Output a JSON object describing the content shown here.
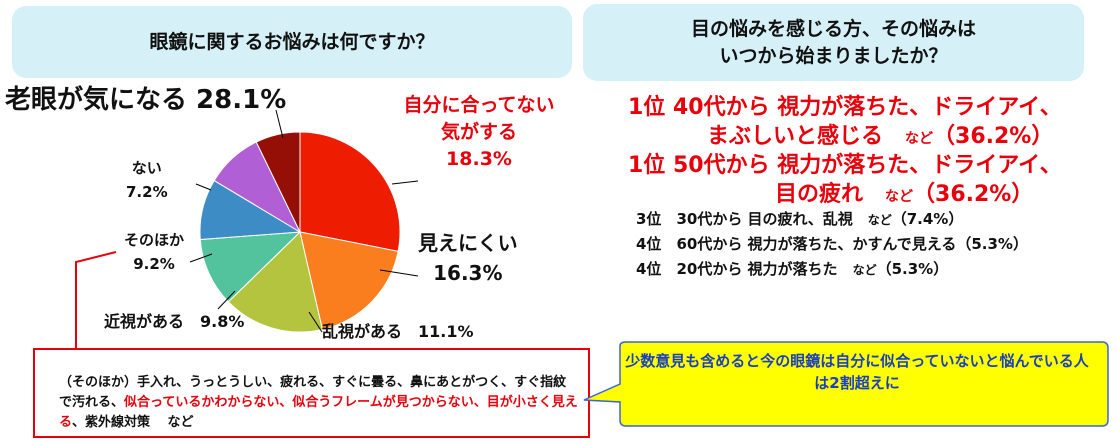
{
  "left_header": "眼鏡に関するお悩みは何ですか？",
  "right_header": "目の悩みを感じる方、その悩みは\nいつから始まりましたか？",
  "chart_data": {
    "type": "pie",
    "title": "眼鏡に関するお悩みは何ですか？",
    "slices": [
      {
        "label": "老眼が気になる",
        "value": 28.1,
        "pct_label": "28.1%",
        "color": "#ee1c00"
      },
      {
        "label": "自分に合ってない気がする",
        "value": 18.3,
        "pct_label": "18.3%",
        "color": "#fa7d1e"
      },
      {
        "label": "見えにくい",
        "value": 16.3,
        "pct_label": "16.3%",
        "color": "#b5c43f"
      },
      {
        "label": "乱視がある",
        "value": 11.1,
        "pct_label": "11.1%",
        "color": "#52c39d"
      },
      {
        "label": "近視がある",
        "value": 9.8,
        "pct_label": "9.8%",
        "color": "#3e8cc6"
      },
      {
        "label": "そのほか",
        "value": 9.2,
        "pct_label": "9.2%",
        "color": "#b05fd4"
      },
      {
        "label": "ない",
        "value": 7.2,
        "pct_label": "7.2%",
        "color": "#950f06"
      }
    ]
  },
  "pie_labels": {
    "rougan": "老眼が気になる 28.1%",
    "jibun": "自分に合ってない\n気がする\n18.3%",
    "mienikui": "見えにくい\n16.3%",
    "ranshi": "乱視がある　11.1%",
    "kinshi": "近視がある　9.8%",
    "sonohoka": "そのほか\n9.2%",
    "nai": "ない\n7.2%"
  },
  "ranking": [
    {
      "rank": "1位",
      "line1": "40代から 視力が落ちた、ドライアイ、",
      "line2": "まぶしいと感じる",
      "nado": "など",
      "pct": "（36.2%）"
    },
    {
      "rank": "1位",
      "line1": "50代から 視力が落ちた、ドライアイ、",
      "line2": "目の疲れ",
      "nado": "など",
      "pct": "（36.2%）"
    },
    {
      "rank": "3位",
      "text": "30代から 目の疲れ、乱視",
      "nado": "など",
      "pct": "（7.4%）"
    },
    {
      "rank": "4位",
      "text": "60代から 視力が落ちた、かすんで見える",
      "nado": "",
      "pct": "（5.3%）"
    },
    {
      "rank": "4位",
      "text": "20代から 視力が落ちた",
      "nado": "など",
      "pct": "（5.3%）"
    }
  ],
  "other_box": {
    "part1": "（そのほか）手入れ、うっとうしい、疲れる、すぐに曇る、鼻にあとがつく、すぐ指紋で汚れる、",
    "red1": "似合っているかわからない、似合うフレームが見つからない、目が小さく見える",
    "part2": "、紫外線対策　 など"
  },
  "note": "少数意見も含めると今の眼鏡は自分に似合っていないと悩んでいる人は2割超えに",
  "colors": {
    "header_bg": "#d5f1f7",
    "red": "#e8000b",
    "note_bg": "#ffff00",
    "note_text": "#1a3fbf"
  }
}
